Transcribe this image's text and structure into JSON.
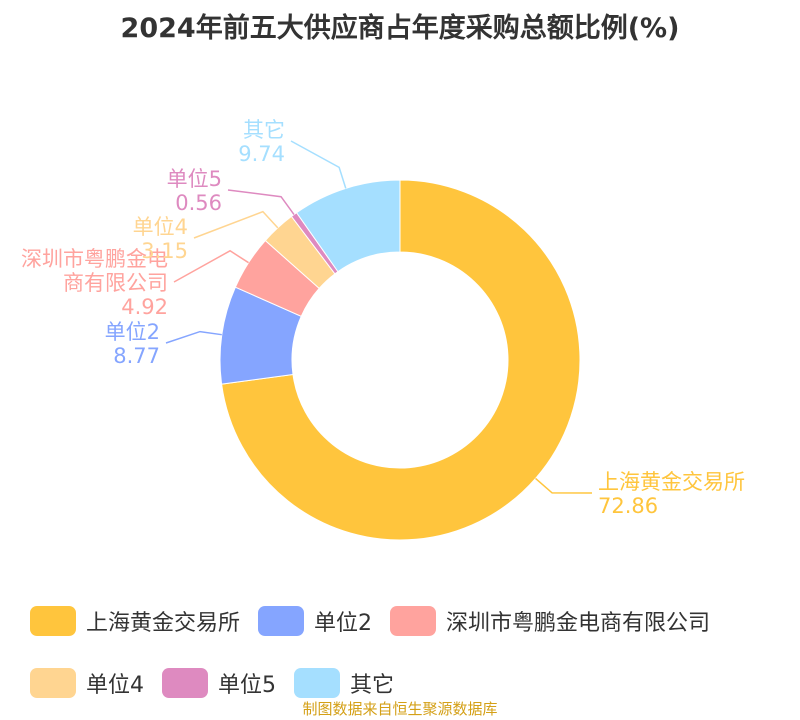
{
  "chart_data": {
    "type": "pie",
    "title": "2024年前五大供应商占年度采购总额比例(%)",
    "series": [
      {
        "name": "上海黄金交易所",
        "value": 72.86,
        "value_label": "72.86",
        "color": "#FFC53D",
        "label_lines": [
          "上海黄金交易所"
        ]
      },
      {
        "name": "单位2",
        "value": 8.77,
        "value_label": "8.77",
        "color": "#85A5FF",
        "label_lines": [
          "单位2"
        ]
      },
      {
        "name": "深圳市粤鹏金电商有限公司",
        "value": 4.92,
        "value_label": "4.92",
        "color": "#FFA39E",
        "label_lines": [
          "深圳市粤鹏金电",
          "商有限公司"
        ]
      },
      {
        "name": "单位4",
        "value": 3.15,
        "value_label": "3.15",
        "color": "#FFD591",
        "label_lines": [
          "单位4"
        ]
      },
      {
        "name": "单位5",
        "value": 0.56,
        "value_label": "0.56",
        "color": "#DE8AC0",
        "label_lines": [
          "单位5"
        ]
      },
      {
        "name": "其它",
        "value": 9.74,
        "value_label": "9.74",
        "color": "#A5DFFF",
        "label_lines": [
          "其它"
        ]
      }
    ],
    "legend_position": "bottom"
  },
  "source": "制图数据来自恒生聚源数据库"
}
